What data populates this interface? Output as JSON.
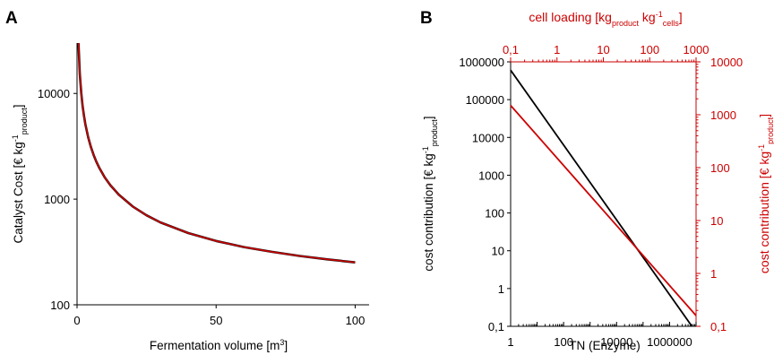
{
  "chart_data": [
    {
      "panel": "A",
      "type": "line",
      "xlabel": "Fermentation volume [m³]",
      "ylabel": "Catalyst Cost [€ kg⁻¹product]",
      "y_log": true,
      "xlim": [
        0,
        105
      ],
      "ylim": [
        100,
        30000
      ],
      "x_ticks": [
        0,
        50,
        100
      ],
      "x_tick_labels": [
        "0",
        "50",
        "100"
      ],
      "y_ticks": [
        100,
        1000,
        10000
      ],
      "y_tick_labels": [
        "100",
        "1000",
        "10000"
      ],
      "grid": false,
      "series": [
        {
          "color": "#cc0000",
          "x": [
            0.5,
            1,
            1.5,
            2,
            2.5,
            3,
            4,
            5,
            6,
            7,
            8,
            10,
            12,
            15,
            20,
            25,
            30,
            40,
            50,
            60,
            70,
            80,
            90,
            100
          ],
          "y": [
            30000,
            15130,
            10120,
            7615,
            6112,
            5110,
            3857,
            3106,
            2605,
            2247,
            1978,
            1603,
            1352,
            1102,
            852,
            702,
            602,
            477,
            402,
            352,
            317,
            290,
            269,
            252
          ]
        }
      ]
    },
    {
      "panel": "B",
      "type": "line",
      "xlabel": "TN (Enzyme)",
      "ylabel": "cost contribution [€ kg⁻¹product]",
      "top_xlabel": "cell loading [kgproduct kg⁻¹cells]",
      "right_ylabel": "cost contribution [€ kg⁻¹product]",
      "x_log": true,
      "y_log": true,
      "xlim": [
        1,
        10000000
      ],
      "ylim": [
        0.1,
        1000000
      ],
      "x_ticks": [
        1,
        100,
        10000,
        1000000
      ],
      "x_tick_labels": [
        "1",
        "100",
        "10000",
        "1000000"
      ],
      "y_ticks": [
        0.1,
        1,
        10,
        100,
        1000,
        10000,
        100000,
        1000000
      ],
      "y_tick_labels": [
        "0,1",
        "1",
        "10",
        "100",
        "1000",
        "10000",
        "100000",
        "1000000"
      ],
      "top_xlim": [
        0.1,
        1000
      ],
      "top_x_ticks": [
        0.1,
        1,
        10,
        100,
        1000
      ],
      "top_x_tick_labels": [
        "0,1",
        "1",
        "10",
        "100",
        "1000"
      ],
      "right_ylim": [
        0.1,
        10000
      ],
      "right_y_ticks": [
        0.1,
        1,
        10,
        100,
        1000,
        10000
      ],
      "right_y_tick_labels": [
        "0,1",
        "1",
        "10",
        "100",
        "1000",
        "10000"
      ],
      "grid": false,
      "series": [
        {
          "axis": "bottom-left",
          "color": "#000000",
          "x": [
            1,
            7000000
          ],
          "y": [
            600000,
            0.1
          ]
        },
        {
          "axis": "top-right",
          "color": "#cc0000",
          "x": [
            0.1,
            1000
          ],
          "y": [
            1500,
            0.16
          ]
        }
      ]
    }
  ]
}
